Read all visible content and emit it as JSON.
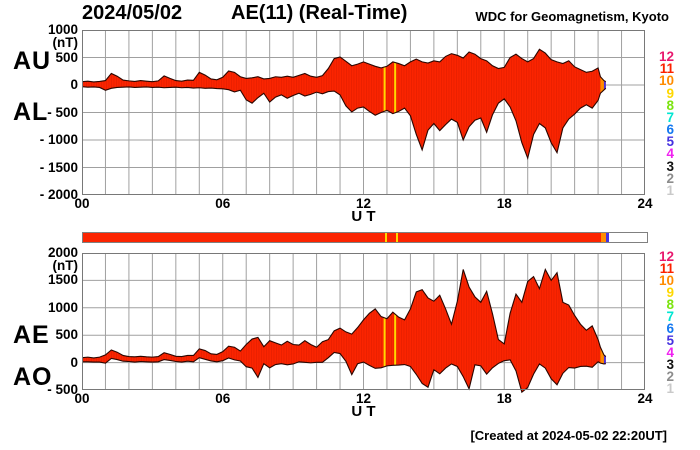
{
  "header": {
    "date": "2024/05/02",
    "title": "AE(11) (Real-Time)",
    "org": "WDC for Geomagnetism, Kyoto"
  },
  "footer": {
    "created": "[Created at 2024-05-02 22:20UT]"
  },
  "colors": {
    "fill": "#fb2400",
    "fill_stripe": "#e31f00",
    "stroke": "#2b0600",
    "grid": "#a0a0a0",
    "frame": "#787878",
    "stripe_yellow": "#ffd800",
    "tip_orange": "#ff8c00",
    "tip_blue": "#4632e0"
  },
  "legend": {
    "items": [
      {
        "label": "12",
        "color": "#e8196e"
      },
      {
        "label": "11",
        "color": "#fb2200"
      },
      {
        "label": "10",
        "color": "#ff8c00"
      },
      {
        "label": "9",
        "color": "#ffd800"
      },
      {
        "label": "8",
        "color": "#7ce410"
      },
      {
        "label": "7",
        "color": "#00e6d2"
      },
      {
        "label": "6",
        "color": "#1478f0"
      },
      {
        "label": "5",
        "color": "#4632e0"
      },
      {
        "label": "4",
        "color": "#f022f0"
      },
      {
        "label": "3",
        "color": "#111111"
      },
      {
        "label": "2",
        "color": "#8c8c8c"
      },
      {
        "label": "1",
        "color": "#c9c9c9"
      }
    ]
  },
  "axis": {
    "ut_label": "U T",
    "x_ticks": [
      {
        "h": 0,
        "label": "00"
      },
      {
        "h": 6,
        "label": "06"
      },
      {
        "h": 12,
        "label": "12"
      },
      {
        "h": 18,
        "label": "18"
      },
      {
        "h": 24,
        "label": "24"
      }
    ]
  },
  "panels": [
    {
      "left_labels": [
        "AU",
        "AL"
      ],
      "unit": "(nT)",
      "yticks": [
        {
          "v": 1000,
          "label": "1000"
        },
        {
          "v": 500,
          "label": "500"
        },
        {
          "v": 0,
          "label": "0"
        },
        {
          "v": -500,
          "label": "- 500"
        },
        {
          "v": -1000,
          "label": "- 1000"
        },
        {
          "v": -1500,
          "label": "- 1500"
        },
        {
          "v": -2000,
          "label": "- 2000"
        }
      ],
      "chart": 0
    },
    {
      "left_labels": [
        "AE",
        "AO"
      ],
      "unit": "(nT)",
      "yticks": [
        {
          "v": 2000,
          "label": "2000"
        },
        {
          "v": 1500,
          "label": "1500"
        },
        {
          "v": 1000,
          "label": "1000"
        },
        {
          "v": 500,
          "label": "500"
        },
        {
          "v": 0,
          "label": "0"
        },
        {
          "v": -500,
          "label": "- 500"
        }
      ],
      "chart": 1
    }
  ],
  "bar": {
    "xlim": [
      0,
      24
    ],
    "segments": [
      {
        "from": 0,
        "to": 22.05,
        "color": "#fb2400"
      },
      {
        "from": 22.05,
        "to": 22.25,
        "color": "#ff8c00"
      },
      {
        "from": 22.25,
        "to": 22.38,
        "color": "#4632e0"
      }
    ],
    "stripes": [
      {
        "hour": 12.9,
        "color": "#ffd800"
      },
      {
        "hour": 13.35,
        "color": "#ffd800"
      }
    ]
  },
  "chart_data": [
    {
      "type": "area",
      "title": "AU and AL auroral electrojet indices, 2024/05/02 (Real-Time, 11 stations)",
      "xlabel": "U T",
      "ylabel": "(nT)",
      "xlim": [
        0,
        24
      ],
      "ylim": [
        -2000,
        1000
      ],
      "ystep": 500,
      "grid": true,
      "x": [
        0,
        0.25,
        0.5,
        0.75,
        1,
        1.25,
        1.5,
        1.75,
        2,
        2.25,
        2.5,
        2.75,
        3,
        3.25,
        3.5,
        3.75,
        4,
        4.25,
        4.5,
        4.75,
        5,
        5.25,
        5.5,
        5.75,
        6,
        6.25,
        6.5,
        6.75,
        7,
        7.25,
        7.5,
        7.75,
        8,
        8.25,
        8.5,
        8.75,
        9,
        9.25,
        9.5,
        9.75,
        10,
        10.25,
        10.5,
        10.75,
        11,
        11.25,
        11.5,
        11.75,
        12,
        12.25,
        12.5,
        12.75,
        13,
        13.25,
        13.5,
        13.75,
        14,
        14.25,
        14.5,
        14.75,
        15,
        15.25,
        15.5,
        15.75,
        16,
        16.25,
        16.5,
        16.75,
        17,
        17.25,
        17.5,
        17.75,
        18,
        18.25,
        18.5,
        18.75,
        19,
        19.25,
        19.5,
        19.75,
        20,
        20.25,
        20.5,
        20.75,
        21,
        21.25,
        21.5,
        21.75,
        22,
        22.1,
        22.25,
        22.33
      ],
      "series": [
        {
          "name": "AU",
          "values": [
            60,
            70,
            55,
            65,
            80,
            210,
            160,
            90,
            75,
            65,
            80,
            70,
            60,
            75,
            165,
            120,
            80,
            70,
            90,
            85,
            230,
            180,
            110,
            95,
            140,
            255,
            230,
            150,
            120,
            130,
            150,
            110,
            120,
            150,
            140,
            160,
            140,
            175,
            210,
            160,
            140,
            170,
            300,
            480,
            510,
            430,
            350,
            380,
            420,
            380,
            340,
            310,
            340,
            420,
            390,
            350,
            420,
            470,
            420,
            400,
            440,
            420,
            520,
            570,
            540,
            490,
            600,
            560,
            480,
            440,
            350,
            300,
            320,
            500,
            560,
            480,
            420,
            480,
            650,
            580,
            460,
            420,
            390,
            440,
            330,
            280,
            230,
            250,
            310,
            150,
            80,
            60
          ]
        },
        {
          "name": "AL",
          "values": [
            -30,
            -40,
            -35,
            -45,
            -95,
            -60,
            -45,
            -40,
            -35,
            -45,
            -40,
            -35,
            -45,
            -40,
            -50,
            -45,
            -40,
            -50,
            -45,
            -55,
            -50,
            -60,
            -55,
            -65,
            -70,
            -85,
            -125,
            -95,
            -270,
            -330,
            -230,
            -150,
            -310,
            -220,
            -180,
            -240,
            -190,
            -150,
            -200,
            -170,
            -130,
            -160,
            -120,
            -110,
            -180,
            -380,
            -490,
            -420,
            -400,
            -480,
            -550,
            -500,
            -460,
            -520,
            -480,
            -420,
            -560,
            -900,
            -1180,
            -820,
            -700,
            -830,
            -720,
            -620,
            -680,
            -1000,
            -760,
            -640,
            -600,
            -860,
            -540,
            -330,
            -250,
            -400,
            -650,
            -1050,
            -1330,
            -900,
            -700,
            -780,
            -1050,
            -1230,
            -780,
            -620,
            -530,
            -420,
            -360,
            -420,
            -280,
            -150,
            -90,
            -60
          ]
        }
      ],
      "stripes": [
        {
          "hour": 12.9,
          "color": "#ffd800"
        },
        {
          "hour": 13.35,
          "color": "#ffd800"
        }
      ],
      "tips": [
        {
          "from": 22.1,
          "to": 22.25,
          "color": "#ff8c00"
        },
        {
          "from": 22.25,
          "to": 22.33,
          "color": "#4632e0"
        }
      ]
    },
    {
      "type": "area",
      "title": "AE and AO auroral electrojet indices, 2024/05/02 (Real-Time, 11 stations)",
      "xlabel": "U T",
      "ylabel": "(nT)",
      "xlim": [
        0,
        24
      ],
      "ylim": [
        -500,
        2000
      ],
      "ystep": 500,
      "grid": true,
      "x": [
        0,
        0.25,
        0.5,
        0.75,
        1,
        1.25,
        1.5,
        1.75,
        2,
        2.25,
        2.5,
        2.75,
        3,
        3.25,
        3.5,
        3.75,
        4,
        4.25,
        4.5,
        4.75,
        5,
        5.25,
        5.5,
        5.75,
        6,
        6.25,
        6.5,
        6.75,
        7,
        7.25,
        7.5,
        7.75,
        8,
        8.25,
        8.5,
        8.75,
        9,
        9.25,
        9.5,
        9.75,
        10,
        10.25,
        10.5,
        10.75,
        11,
        11.25,
        11.5,
        11.75,
        12,
        12.25,
        12.5,
        12.75,
        13,
        13.25,
        13.5,
        13.75,
        14,
        14.25,
        14.5,
        14.75,
        15,
        15.25,
        15.5,
        15.75,
        16,
        16.25,
        16.5,
        16.75,
        17,
        17.25,
        17.5,
        17.75,
        18,
        18.25,
        18.5,
        18.75,
        19,
        19.25,
        19.5,
        19.75,
        20,
        20.25,
        20.5,
        20.75,
        21,
        21.25,
        21.5,
        21.75,
        22,
        22.1,
        22.25,
        22.33
      ],
      "series": [
        {
          "name": "AE",
          "values": [
            90,
            100,
            85,
            100,
            140,
            230,
            190,
            130,
            110,
            105,
            115,
            105,
            100,
            110,
            180,
            150,
            115,
            110,
            130,
            130,
            250,
            220,
            160,
            150,
            200,
            300,
            280,
            210,
            330,
            430,
            460,
            290,
            400,
            360,
            320,
            390,
            330,
            320,
            400,
            330,
            280,
            380,
            420,
            580,
            630,
            560,
            520,
            640,
            780,
            900,
            980,
            840,
            800,
            920,
            830,
            780,
            980,
            1290,
            1330,
            1180,
            1120,
            1230,
            980,
            700,
            1120,
            1700,
            1380,
            1200,
            1100,
            1300,
            890,
            420,
            340,
            900,
            1250,
            1100,
            1480,
            1570,
            1350,
            1700,
            1500,
            1640,
            1100,
            1050,
            860,
            700,
            590,
            670,
            420,
            280,
            140,
            110
          ]
        },
        {
          "name": "AO",
          "values": [
            15,
            15,
            10,
            10,
            -10,
            75,
            55,
            25,
            20,
            10,
            20,
            15,
            10,
            15,
            55,
            40,
            20,
            10,
            25,
            15,
            90,
            60,
            30,
            15,
            35,
            85,
            50,
            30,
            -75,
            -100,
            -270,
            -20,
            -95,
            -35,
            -20,
            -40,
            -25,
            15,
            5,
            -5,
            5,
            5,
            90,
            185,
            165,
            25,
            -220,
            -20,
            10,
            -50,
            -105,
            -95,
            -60,
            -50,
            -45,
            -35,
            -70,
            -215,
            -380,
            -450,
            -130,
            -205,
            -100,
            -25,
            -70,
            -255,
            -480,
            -40,
            -60,
            -210,
            -95,
            -15,
            35,
            50,
            -150,
            -540,
            -455,
            -210,
            -25,
            -100,
            -295,
            -405,
            -195,
            -90,
            -100,
            -70,
            -65,
            -85,
            15,
            -10,
            -25,
            -20
          ]
        }
      ],
      "stripes": [
        {
          "hour": 12.9,
          "color": "#ffd800"
        },
        {
          "hour": 13.35,
          "color": "#ffd800"
        }
      ],
      "tips": [
        {
          "from": 22.1,
          "to": 22.25,
          "color": "#ff8c00"
        },
        {
          "from": 22.25,
          "to": 22.33,
          "color": "#4632e0"
        }
      ]
    }
  ]
}
